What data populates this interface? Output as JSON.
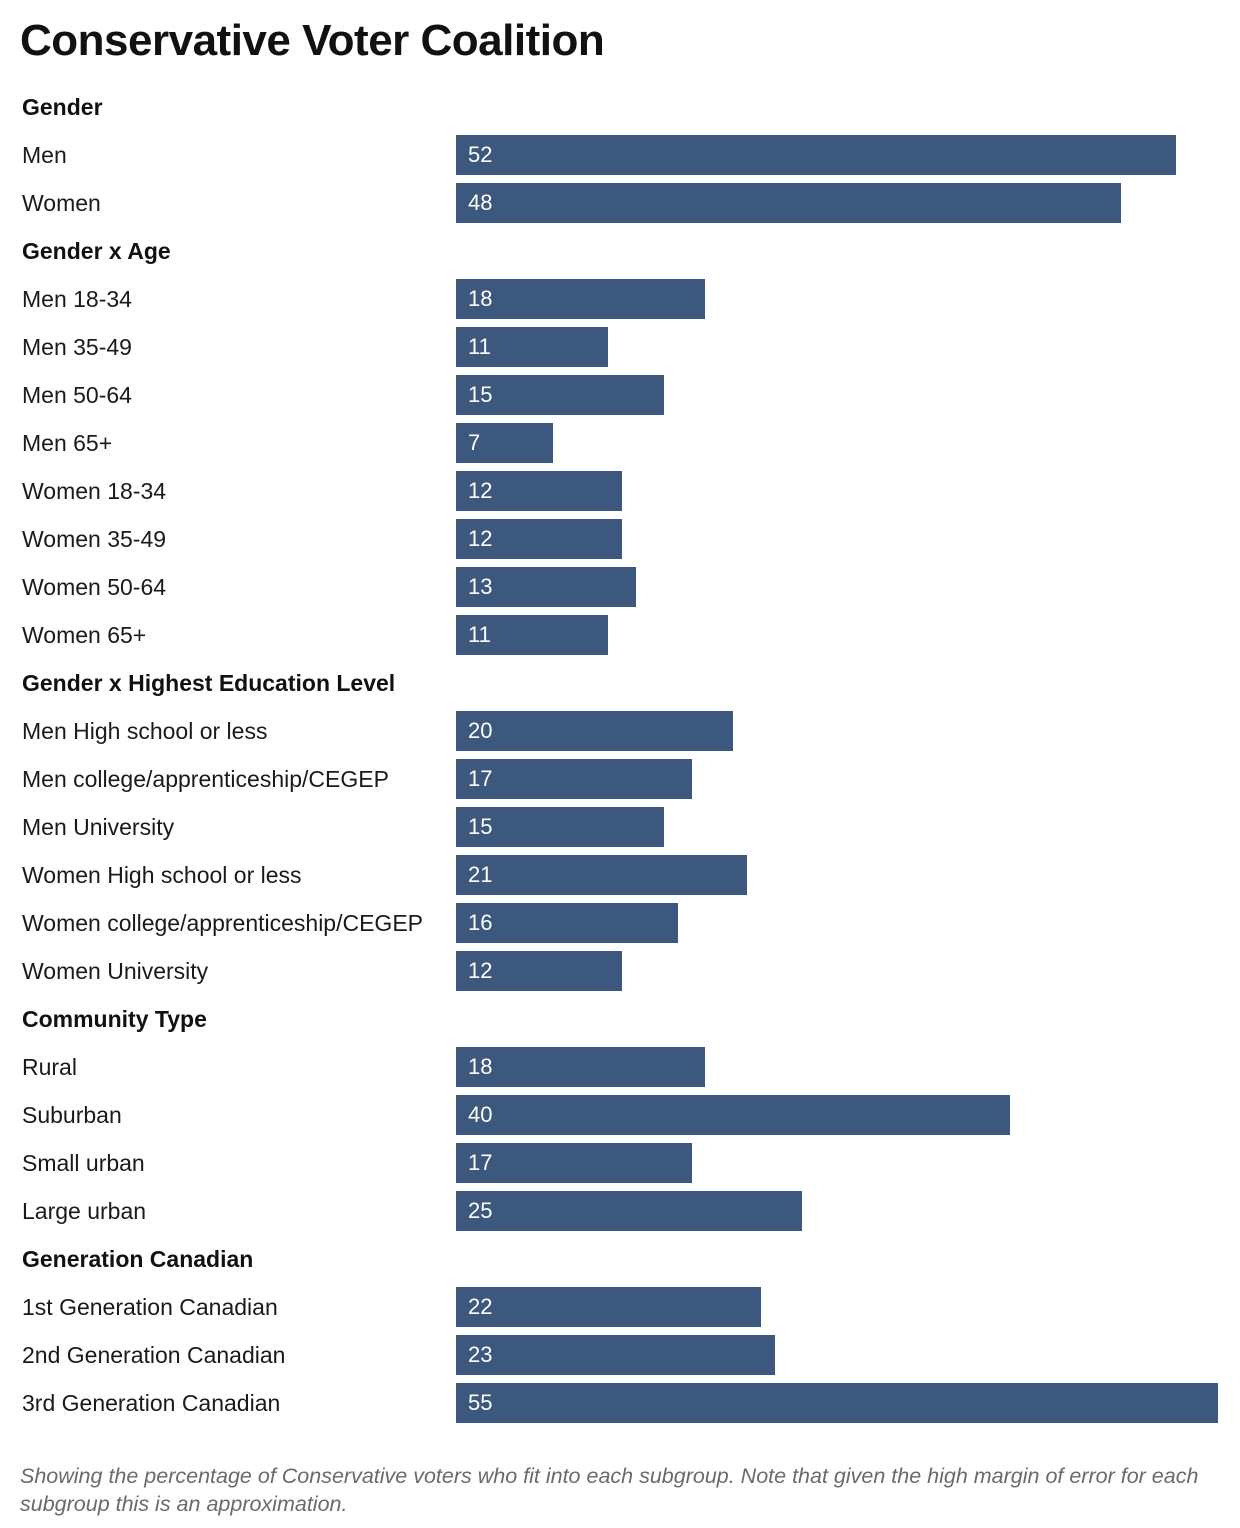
{
  "chart_data": {
    "type": "bar",
    "orientation": "horizontal",
    "title": "Conservative Voter Coalition",
    "note": "Showing the percentage of Conservative voters who fit into each subgroup. Note that given the high margin of error for each subgroup this is an approximation.",
    "xlim": [
      0,
      55
    ],
    "bar_color": "#3c587e",
    "value_label_color": "#ffffff",
    "groups": [
      {
        "name": "Gender",
        "items": [
          {
            "label": "Men",
            "value": 52
          },
          {
            "label": "Women",
            "value": 48
          }
        ]
      },
      {
        "name": "Gender x Age",
        "items": [
          {
            "label": "Men 18-34",
            "value": 18
          },
          {
            "label": "Men 35-49",
            "value": 11
          },
          {
            "label": "Men 50-64",
            "value": 15
          },
          {
            "label": "Men 65+",
            "value": 7
          },
          {
            "label": "Women 18-34",
            "value": 12
          },
          {
            "label": "Women 35-49",
            "value": 12
          },
          {
            "label": "Women 50-64",
            "value": 13
          },
          {
            "label": "Women 65+",
            "value": 11
          }
        ]
      },
      {
        "name": "Gender x Highest Education Level",
        "items": [
          {
            "label": "Men High school or less",
            "value": 20
          },
          {
            "label": "Men college/apprenticeship/CEGEP",
            "value": 17
          },
          {
            "label": "Men University",
            "value": 15
          },
          {
            "label": "Women High school or less",
            "value": 21
          },
          {
            "label": "Women college/apprenticeship/CEGEP",
            "value": 16
          },
          {
            "label": "Women University",
            "value": 12
          }
        ]
      },
      {
        "name": "Community Type",
        "items": [
          {
            "label": "Rural",
            "value": 18
          },
          {
            "label": "Suburban",
            "value": 40
          },
          {
            "label": "Small urban",
            "value": 17
          },
          {
            "label": "Large urban",
            "value": 25
          }
        ]
      },
      {
        "name": "Generation Canadian",
        "items": [
          {
            "label": "1st Generation Canadian",
            "value": 22
          },
          {
            "label": "2nd Generation Canadian",
            "value": 23
          },
          {
            "label": "3rd Generation Canadian",
            "value": 55
          }
        ]
      }
    ]
  }
}
